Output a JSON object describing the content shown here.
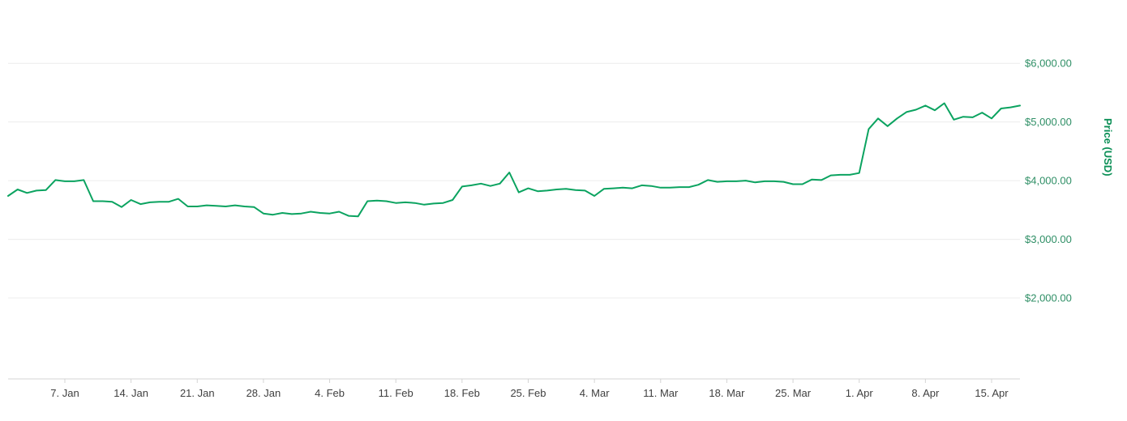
{
  "chart_data": {
    "type": "line",
    "title": "",
    "ylabel": "Price (USD)",
    "series_name": "Price",
    "start_date": "1. Jan",
    "end_date": "18. Apr",
    "ylim": [
      620,
      7080
    ],
    "grid": true,
    "legend": "none",
    "y_ticks": [
      {
        "value": 2000,
        "label": "$2,000.00"
      },
      {
        "value": 3000,
        "label": "$3,000.00"
      },
      {
        "value": 4000,
        "label": "$4,000.00"
      },
      {
        "value": 5000,
        "label": "$5,000.00"
      },
      {
        "value": 6000,
        "label": "$6,000.00"
      }
    ],
    "x_ticks": [
      {
        "label": "7. Jan",
        "day_index": 6
      },
      {
        "label": "14. Jan",
        "day_index": 13
      },
      {
        "label": "21. Jan",
        "day_index": 20
      },
      {
        "label": "28. Jan",
        "day_index": 27
      },
      {
        "label": "4. Feb",
        "day_index": 34
      },
      {
        "label": "11. Feb",
        "day_index": 41
      },
      {
        "label": "18. Feb",
        "day_index": 48
      },
      {
        "label": "25. Feb",
        "day_index": 55
      },
      {
        "label": "4. Mar",
        "day_index": 62
      },
      {
        "label": "11. Mar",
        "day_index": 69
      },
      {
        "label": "18. Mar",
        "day_index": 76
      },
      {
        "label": "25. Mar",
        "day_index": 83
      },
      {
        "label": "1. Apr",
        "day_index": 90
      },
      {
        "label": "8. Apr",
        "day_index": 97
      },
      {
        "label": "15. Apr",
        "day_index": 104
      }
    ],
    "values": [
      3740,
      3850,
      3790,
      3830,
      3840,
      4010,
      3990,
      3990,
      4010,
      3650,
      3650,
      3640,
      3550,
      3670,
      3600,
      3630,
      3640,
      3640,
      3690,
      3560,
      3560,
      3580,
      3570,
      3560,
      3580,
      3560,
      3550,
      3440,
      3420,
      3450,
      3430,
      3440,
      3470,
      3450,
      3440,
      3470,
      3400,
      3390,
      3650,
      3660,
      3650,
      3620,
      3630,
      3620,
      3590,
      3610,
      3620,
      3670,
      3900,
      3920,
      3950,
      3910,
      3950,
      4140,
      3800,
      3870,
      3820,
      3830,
      3850,
      3860,
      3840,
      3830,
      3740,
      3860,
      3870,
      3880,
      3870,
      3920,
      3910,
      3880,
      3880,
      3890,
      3890,
      3930,
      4010,
      3980,
      3990,
      3990,
      4000,
      3970,
      3990,
      3990,
      3980,
      3940,
      3940,
      4020,
      4010,
      4090,
      4100,
      4100,
      4130,
      4880,
      5060,
      4930,
      5060,
      5170,
      5210,
      5280,
      5200,
      5320,
      5040,
      5090,
      5080,
      5160,
      5060,
      5230,
      5250,
      5280
    ],
    "colors": {
      "line": "#0ba360",
      "grid": "#ececec",
      "axis": "#d4d4d4",
      "y_label": "#2f8f66",
      "x_label": "#404040",
      "axis_title": "#0b8f56",
      "background": "#ffffff"
    }
  }
}
